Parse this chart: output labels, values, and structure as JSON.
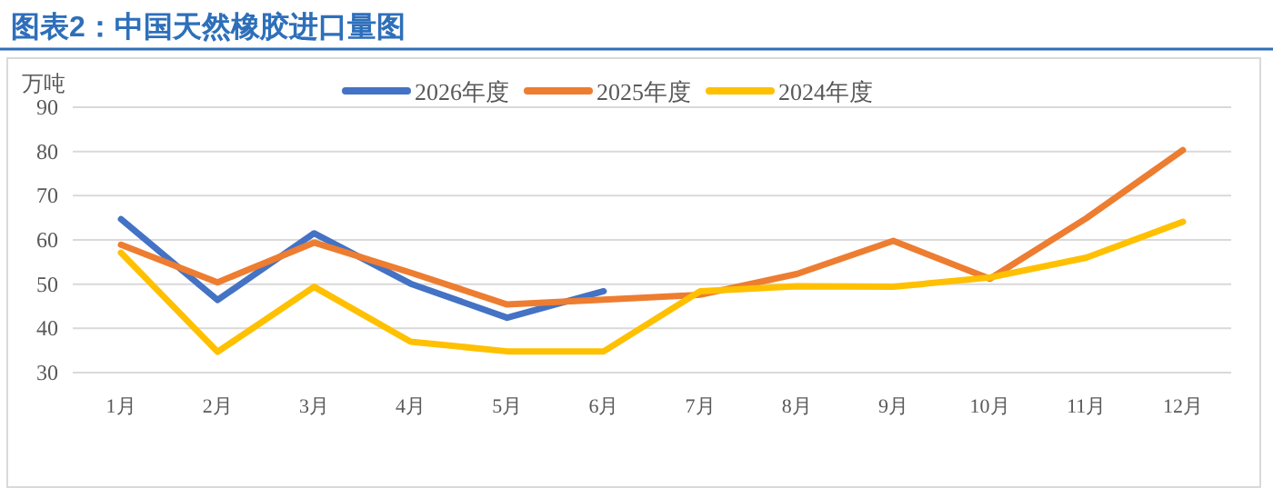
{
  "chart_data": {
    "type": "line",
    "title": "图表2：中国天然橡胶进口量图",
    "ylabel": "万吨",
    "categories": [
      "1月",
      "2月",
      "3月",
      "4月",
      "5月",
      "6月",
      "7月",
      "8月",
      "9月",
      "10月",
      "11月",
      "12月"
    ],
    "series": [
      {
        "name": "2026年度",
        "color": "#4472c4",
        "values": [
          64.7,
          46.4,
          61.5,
          50.1,
          42.4,
          48.4,
          null,
          null,
          null,
          null,
          null,
          null
        ]
      },
      {
        "name": "2025年度",
        "color": "#ed7d31",
        "values": [
          58.9,
          50.4,
          59.4,
          52.6,
          45.4,
          46.5,
          47.6,
          52.3,
          59.8,
          51.2,
          64.9,
          80.3
        ]
      },
      {
        "name": "2024年度",
        "color": "#ffc000",
        "values": [
          57.1,
          34.7,
          49.4,
          37.0,
          34.8,
          34.8,
          48.4,
          49.5,
          49.4,
          51.5,
          56.0,
          64.1
        ]
      }
    ],
    "ylim": [
      30,
      90
    ],
    "yticks": [
      30,
      40,
      50,
      60,
      70,
      80,
      90
    ],
    "grid": "y",
    "legend": "top",
    "marker": "none",
    "line_style": "solid"
  }
}
